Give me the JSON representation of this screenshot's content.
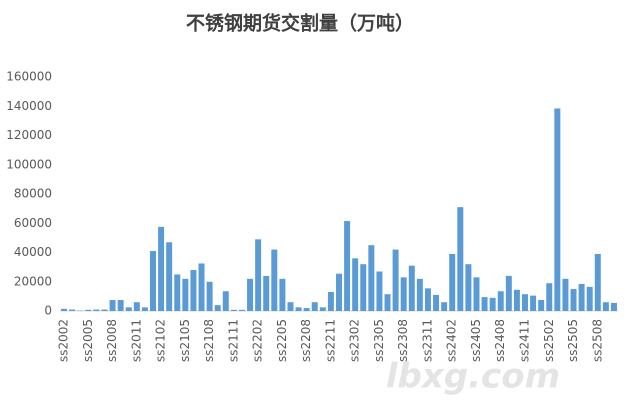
{
  "chart_data": {
    "type": "bar",
    "title": "不锈钢期货交割量（万吨）",
    "categories": [
      "ss2002",
      null,
      null,
      "ss2005",
      null,
      null,
      "ss2008",
      null,
      null,
      "ss2011",
      null,
      null,
      "ss2102",
      null,
      null,
      "ss2105",
      null,
      null,
      "ss2108",
      null,
      null,
      "ss2111",
      null,
      null,
      "ss2202",
      null,
      null,
      "ss2205",
      null,
      null,
      "ss2208",
      null,
      null,
      "ss2211",
      null,
      null,
      "ss2302",
      null,
      null,
      "ss2305",
      null,
      null,
      "ss2308",
      null,
      null,
      "ss2311",
      null,
      null,
      "ss2402",
      null,
      null,
      "ss2405",
      null,
      null,
      "ss2408",
      null,
      null,
      "ss2411",
      null,
      null,
      "ss2502",
      null,
      null,
      "ss2505",
      null,
      null,
      "ss2508",
      null,
      null
    ],
    "values": [
      1500,
      1000,
      300,
      800,
      1000,
      1000,
      7500,
      7500,
      2500,
      6000,
      2500,
      41000,
      57500,
      47000,
      25000,
      22000,
      28000,
      32500,
      20000,
      4000,
      13500,
      800,
      800,
      22000,
      49000,
      24000,
      42000,
      22000,
      6000,
      2500,
      2000,
      6000,
      2500,
      13000,
      25500,
      61500,
      36000,
      32000,
      45000,
      27000,
      11500,
      42000,
      23000,
      31000,
      22000,
      15500,
      11000,
      6000,
      39000,
      71000,
      32000,
      23000,
      9500,
      9000,
      13500,
      24000,
      14500,
      11500,
      10500,
      7500,
      19000,
      138500,
      22000,
      15000,
      18500,
      16500,
      39000,
      6000,
      5500
    ],
    "color": "#5b9bd5",
    "ylim": [
      0,
      160000
    ],
    "yticks": [
      0,
      20000,
      40000,
      60000,
      80000,
      100000,
      120000,
      140000,
      160000
    ],
    "grid": false,
    "watermark": "lbxg.com"
  }
}
